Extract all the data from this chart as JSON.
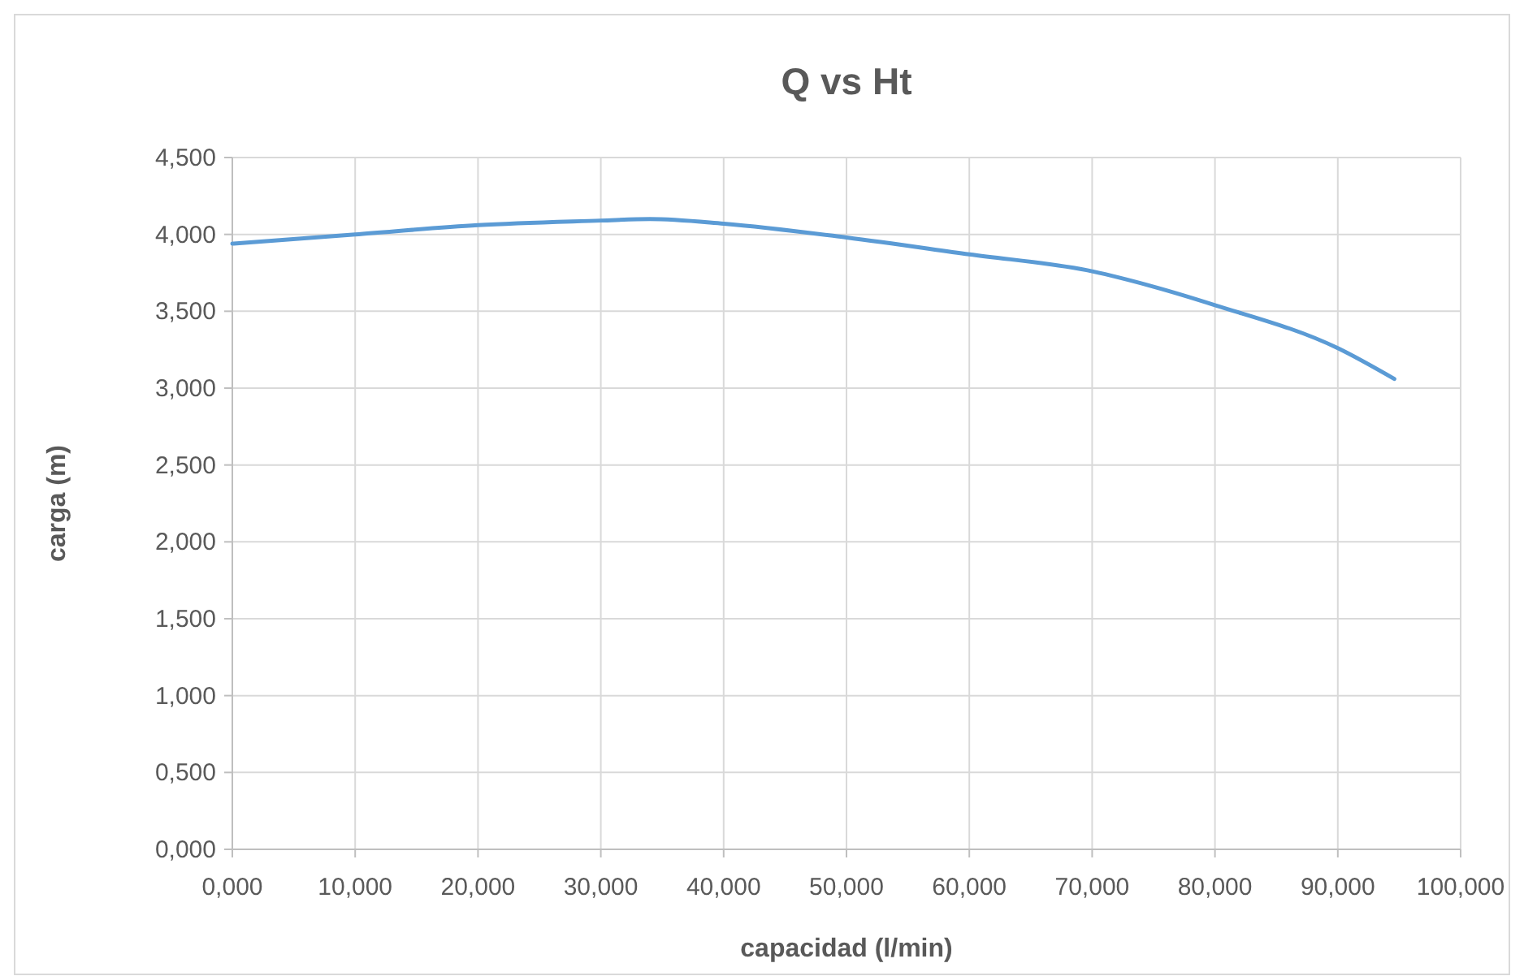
{
  "chart_data": {
    "type": "line",
    "title": "Q vs Ht",
    "xlabel": "capacidad (l/min)",
    "ylabel": "carga (m)",
    "x": [
      0,
      10,
      20,
      30,
      34,
      40,
      50,
      60,
      70,
      75,
      80,
      90,
      94.6
    ],
    "series": [
      {
        "color": "#5b9bd5",
        "values": [
          3.94,
          4.0,
          4.06,
          4.09,
          4.1,
          4.07,
          3.98,
          3.87,
          3.76,
          3.66,
          3.54,
          3.26,
          3.06
        ]
      }
    ],
    "xlim": [
      0,
      100
    ],
    "xticks": [
      {
        "value": 0,
        "label": "0,000"
      },
      {
        "value": 10,
        "label": "10,000"
      },
      {
        "value": 20,
        "label": "20,000"
      },
      {
        "value": 30,
        "label": "30,000"
      },
      {
        "value": 40,
        "label": "40,000"
      },
      {
        "value": 50,
        "label": "50,000"
      },
      {
        "value": 60,
        "label": "60,000"
      },
      {
        "value": 70,
        "label": "70,000"
      },
      {
        "value": 80,
        "label": "80,000"
      },
      {
        "value": 90,
        "label": "90,000"
      },
      {
        "value": 100,
        "label": "100,000"
      }
    ],
    "ylim": [
      0,
      4.5
    ],
    "yticks": [
      {
        "value": 0,
        "label": "0,000"
      },
      {
        "value": 0.5,
        "label": "0,500"
      },
      {
        "value": 1,
        "label": "1,000"
      },
      {
        "value": 1.5,
        "label": "1,500"
      },
      {
        "value": 2,
        "label": "2,000"
      },
      {
        "value": 2.5,
        "label": "2,500"
      },
      {
        "value": 3,
        "label": "3,000"
      },
      {
        "value": 3.5,
        "label": "3,500"
      },
      {
        "value": 4,
        "label": "4,000"
      },
      {
        "value": 4.5,
        "label": "4,500"
      }
    ],
    "grid": true,
    "marker": "none",
    "line_style": "solid"
  }
}
